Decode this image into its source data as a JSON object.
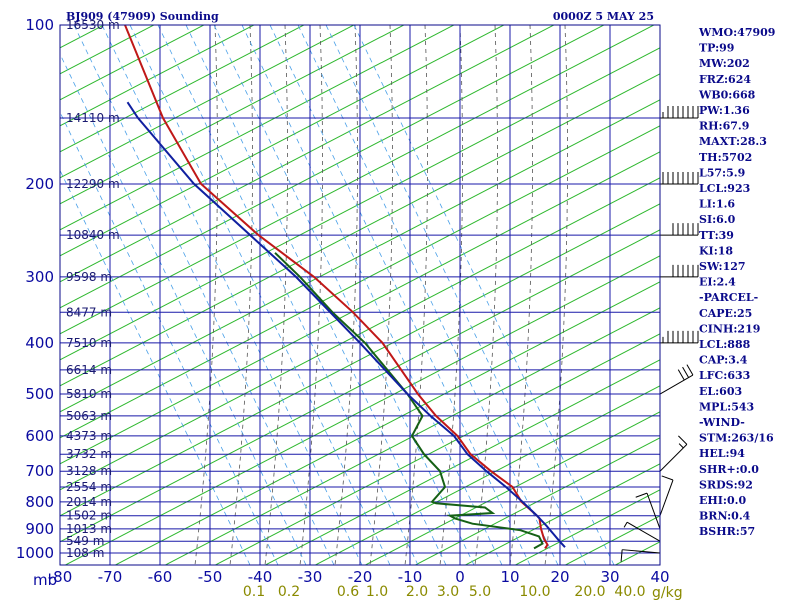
{
  "header": {
    "station": "BJ909 (47909) Sounding",
    "time": "0000Z  5 MAY 25",
    "unit_label": "mb",
    "mixing_ratio_unit": "g/kg"
  },
  "colors": {
    "frame": "#0a0a8a",
    "isotherm": "#1818a8",
    "dry_adiabat": "#2eb82e",
    "moist_adiabat": "#555555",
    "mixing_ratio": "#4aa0e8",
    "temperature": "#c01818",
    "dewpoint": "#156015",
    "parcel": "#1020a0",
    "wind": "#000000"
  },
  "indices": [
    "WMO:47909",
    "TP:99",
    "MW:202",
    "FRZ:624",
    "WB0:668",
    "PW:1.36",
    "RH:67.9",
    "MAXT:28.3",
    "TH:5702",
    "L57:5.9",
    "LCL:923",
    "LI:1.6",
    "SI:6.0",
    "TT:39",
    "KI:18",
    "SW:127",
    "EI:2.4",
    "-PARCEL-",
    "CAPE:25",
    "CINH:219",
    "LCL:888",
    "CAP:3.4",
    "LFC:633",
    "EL:603",
    "MPL:543",
    "-WIND-",
    "STM:263/16",
    "HEL:94",
    "SHR+:0.0",
    "SRDS:92",
    "EHI:0.0",
    "BRN:0.4",
    "BSHR:57"
  ],
  "chart_data": {
    "type": "line",
    "diagram": "skew-T log-P",
    "xlim": [
      -80,
      40
    ],
    "ylim_hpa": [
      1000,
      100
    ],
    "y_scale": "log",
    "pressure_ticks": [
      100,
      200,
      300,
      400,
      500,
      600,
      700,
      800,
      900,
      1000
    ],
    "temperature_ticks": [
      "-80",
      "-70",
      "-60",
      "-50",
      "-40",
      "-30",
      "-20",
      "-10",
      "0",
      "10",
      "20",
      "30",
      "40"
    ],
    "height_labels": [
      {
        "p": 100,
        "text": "16530 m"
      },
      {
        "p": 150,
        "text": "14110 m"
      },
      {
        "p": 200,
        "text": "12290 m"
      },
      {
        "p": 250,
        "text": "10840 m"
      },
      {
        "p": 300,
        "text": "9598 m"
      },
      {
        "p": 350,
        "text": "8477 m"
      },
      {
        "p": 400,
        "text": "7510 m"
      },
      {
        "p": 450,
        "text": "6614 m"
      },
      {
        "p": 500,
        "text": "5810 m"
      },
      {
        "p": 550,
        "text": "5063 m"
      },
      {
        "p": 600,
        "text": "4373 m"
      },
      {
        "p": 650,
        "text": "3732 m"
      },
      {
        "p": 700,
        "text": "3128 m"
      },
      {
        "p": 750,
        "text": "2554 m"
      },
      {
        "p": 800,
        "text": "2014 m"
      },
      {
        "p": 850,
        "text": "1502 m"
      },
      {
        "p": 900,
        "text": "1013 m"
      },
      {
        "p": 950,
        "text": "549 m"
      },
      {
        "p": 1000,
        "text": "108 m"
      }
    ],
    "mixing_ratio_labels": [
      "0.1",
      "0.2",
      "0.6",
      "1.0",
      "2.0",
      "3.0",
      "5.0",
      "10.0",
      "20.0",
      "40.0"
    ],
    "series": [
      {
        "key": "temperature",
        "points": [
          [
            980,
            17
          ],
          [
            965,
            17.5
          ],
          [
            940,
            16.8
          ],
          [
            900,
            16.2
          ],
          [
            860,
            15.9
          ],
          [
            850,
            15.4
          ],
          [
            800,
            12.3
          ],
          [
            750,
            10.5
          ],
          [
            700,
            6.2
          ],
          [
            650,
            2.1
          ],
          [
            600,
            -0.5
          ],
          [
            550,
            -4.8
          ],
          [
            500,
            -8.4
          ],
          [
            400,
            -15.5
          ],
          [
            350,
            -21.4
          ],
          [
            300,
            -29.2
          ],
          [
            250,
            -40.3
          ],
          [
            200,
            -51.8
          ],
          [
            150,
            -59.4
          ],
          [
            100,
            -67
          ]
        ]
      },
      {
        "key": "dewpoint",
        "points": [
          [
            980,
            14.8
          ],
          [
            960,
            16.5
          ],
          [
            930,
            15.8
          ],
          [
            905,
            12
          ],
          [
            880,
            2.5
          ],
          [
            860,
            -1
          ],
          [
            850,
            -2
          ],
          [
            840,
            6.5
          ],
          [
            820,
            5
          ],
          [
            805,
            -4.8
          ],
          [
            800,
            -5.6
          ],
          [
            750,
            -3
          ],
          [
            700,
            -4
          ],
          [
            650,
            -7.2
          ],
          [
            600,
            -9.6
          ],
          [
            550,
            -7.5
          ],
          [
            500,
            -10.5
          ],
          [
            400,
            -19
          ],
          [
            350,
            -25.5
          ],
          [
            300,
            -32
          ],
          [
            270,
            -37
          ]
        ]
      },
      {
        "key": "parcel",
        "points": [
          [
            975,
            21
          ],
          [
            950,
            19.9
          ],
          [
            923,
            18.8
          ],
          [
            888,
            17.3
          ],
          [
            850,
            15.4
          ],
          [
            800,
            12.5
          ],
          [
            750,
            9.2
          ],
          [
            700,
            5.3
          ],
          [
            650,
            1.5
          ],
          [
            600,
            -1.2
          ],
          [
            550,
            -5.9
          ],
          [
            500,
            -10.5
          ],
          [
            400,
            -20
          ],
          [
            300,
            -32.8
          ],
          [
            200,
            -53.2
          ],
          [
            150,
            -64.4
          ],
          [
            140,
            -66.5
          ]
        ]
      }
    ],
    "wind_barbs": [
      {
        "p": 150,
        "dir": 270,
        "speed_kt": 75
      },
      {
        "p": 200,
        "dir": 270,
        "speed_kt": 90
      },
      {
        "p": 250,
        "dir": 270,
        "speed_kt": 60
      },
      {
        "p": 300,
        "dir": 270,
        "speed_kt": 60
      },
      {
        "p": 400,
        "dir": 270,
        "speed_kt": 75
      },
      {
        "p": 500,
        "dir": 240,
        "speed_kt": 30
      },
      {
        "p": 700,
        "dir": 225,
        "speed_kt": 15
      },
      {
        "p": 850,
        "dir": 200,
        "speed_kt": 10
      },
      {
        "p": 900,
        "dir": 160,
        "speed_kt": 10
      },
      {
        "p": 950,
        "dir": 120,
        "speed_kt": 5
      },
      {
        "p": 1000,
        "dir": 95,
        "speed_kt": 10
      }
    ]
  }
}
